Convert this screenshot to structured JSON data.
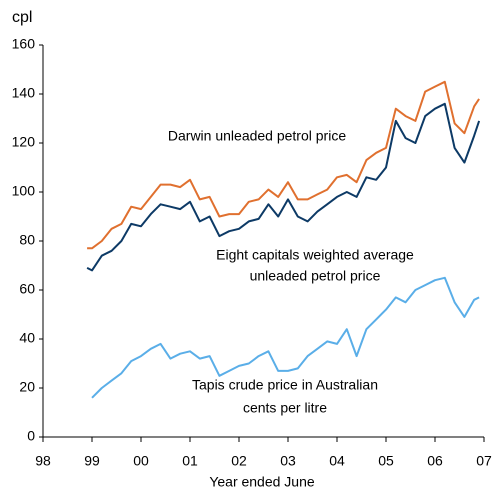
{
  "chart_data": {
    "type": "line",
    "y_unit_label": "cpl",
    "xlabel": "Year ended June",
    "annotations": [
      "Darwin unleaded petrol price",
      "Eight capitals weighted average",
      "unleaded petrol price",
      "Tapis  crude price in Australian",
      "cents per litre"
    ],
    "x": [
      98.9,
      99.0,
      99.2,
      99.4,
      99.6,
      99.8,
      100.0,
      100.2,
      100.4,
      100.6,
      100.8,
      101.0,
      101.2,
      101.4,
      101.6,
      101.8,
      102.0,
      102.2,
      102.4,
      102.6,
      102.8,
      103.0,
      103.2,
      103.4,
      103.6,
      103.8,
      104.0,
      104.2,
      104.4,
      104.6,
      104.8,
      105.0,
      105.2,
      105.4,
      105.6,
      105.8,
      106.0,
      106.2,
      106.4,
      106.6,
      106.8,
      106.9
    ],
    "series": [
      {
        "name": "Darwin unleaded petrol price",
        "color": "#e0702f",
        "values": [
          77,
          77,
          80,
          85,
          87,
          94,
          93,
          98,
          103,
          103,
          102,
          105,
          97,
          98,
          90,
          91,
          91,
          96,
          97,
          101,
          98,
          104,
          97,
          97,
          99,
          101,
          106,
          107,
          104,
          113,
          116,
          118,
          134,
          131,
          129,
          141,
          143,
          145,
          128,
          124,
          135,
          138
        ]
      },
      {
        "name": "Eight capitals weighted average unleaded petrol price",
        "color": "#0d3a66",
        "values": [
          69,
          68,
          74,
          76,
          80,
          87,
          86,
          91,
          95,
          94,
          93,
          96,
          88,
          90,
          82,
          84,
          85,
          88,
          89,
          95,
          90,
          97,
          90,
          88,
          92,
          95,
          98,
          100,
          98,
          106,
          105,
          110,
          129,
          122,
          120,
          131,
          134,
          136,
          118,
          112,
          123,
          129
        ]
      },
      {
        "name": "Tapis crude price in Australian cents per litre",
        "color": "#5aaee8",
        "values": [
          null,
          16,
          20,
          23,
          26,
          31,
          33,
          36,
          38,
          32,
          34,
          35,
          32,
          33,
          25,
          27,
          29,
          30,
          33,
          35,
          27,
          27,
          28,
          33,
          36,
          39,
          38,
          44,
          33,
          44,
          48,
          52,
          57,
          55,
          60,
          62,
          64,
          65,
          55,
          49,
          56,
          57
        ]
      }
    ],
    "xlim": [
      98,
      107
    ],
    "xticks": [
      98,
      99,
      {
        "value": 100,
        "label": "00"
      },
      {
        "value": 101,
        "label": "01"
      },
      {
        "value": 102,
        "label": "02"
      },
      {
        "value": 103,
        "label": "03"
      },
      {
        "value": 104,
        "label": "04"
      },
      {
        "value": 105,
        "label": "05"
      },
      {
        "value": 106,
        "label": "06"
      },
      {
        "value": 107,
        "label": "07"
      }
    ],
    "ylim": [
      0,
      160
    ],
    "yticks": [
      0,
      20,
      40,
      60,
      80,
      100,
      120,
      140,
      160
    ],
    "grid": false
  }
}
